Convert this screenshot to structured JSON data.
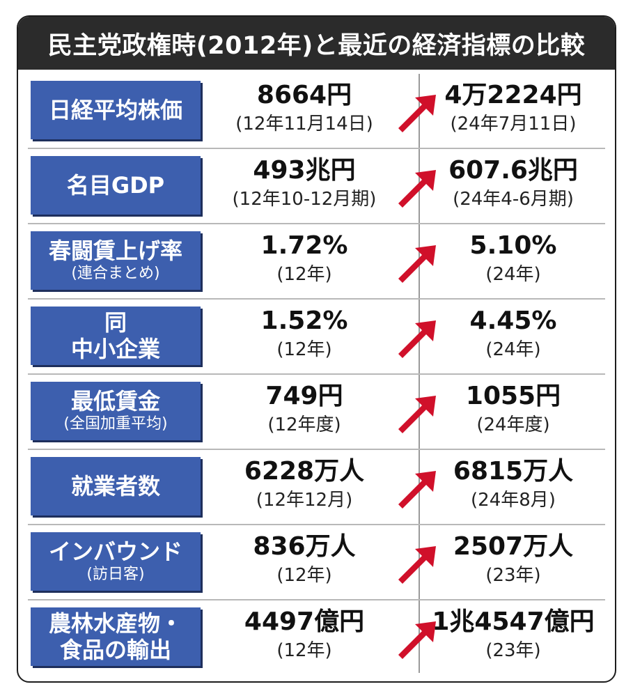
{
  "title": "民主党政権時(2012年)と最近の経済指標の比較",
  "colors": {
    "label_bg": "#3d5fae",
    "arrow": "#d0102a",
    "title_bg": "#2b2b2b"
  },
  "arrow_icon": "up-right-arrow",
  "rows": [
    {
      "label": "日経平均株価",
      "label_sub": "",
      "before": "8664円",
      "before_sub": "(12年11月14日)",
      "after": "4万2224円",
      "after_sub": "(24年7月11日)"
    },
    {
      "label": "名目GDP",
      "label_sub": "",
      "before": "493兆円",
      "before_sub": "(12年10-12月期)",
      "after": "607.6兆円",
      "after_sub": "(24年4-6月期)"
    },
    {
      "label": "春闘賃上げ率",
      "label_sub": "(連合まとめ)",
      "before": "1.72%",
      "before_sub": "(12年)",
      "after": "5.10%",
      "after_sub": "(24年)"
    },
    {
      "label": "同",
      "label_sub": "中小企業",
      "before": "1.52%",
      "before_sub": "(12年)",
      "after": "4.45%",
      "after_sub": "(24年)"
    },
    {
      "label": "最低賃金",
      "label_sub": "(全国加重平均)",
      "before": "749円",
      "before_sub": "(12年度)",
      "after": "1055円",
      "after_sub": "(24年度)"
    },
    {
      "label": "就業者数",
      "label_sub": "",
      "before": "6228万人",
      "before_sub": "(12年12月)",
      "after": "6815万人",
      "after_sub": "(24年8月)"
    },
    {
      "label": "インバウンド",
      "label_sub": "(訪日客)",
      "before": "836万人",
      "before_sub": "(12年)",
      "after": "2507万人",
      "after_sub": "(23年)"
    },
    {
      "label": "農林水産物・",
      "label_sub": "食品の輸出",
      "before": "4497億円",
      "before_sub": "(12年)",
      "after": "1兆4547億円",
      "after_sub": "(23年)"
    }
  ]
}
